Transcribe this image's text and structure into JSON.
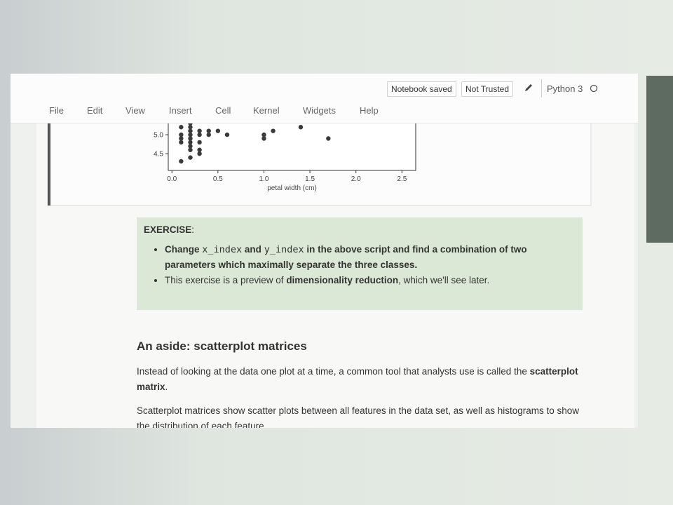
{
  "toolbar": {
    "status": "Notebook saved",
    "trust": "Not Trusted",
    "kernel": "Python 3"
  },
  "menu": [
    "File",
    "Edit",
    "View",
    "Insert",
    "Cell",
    "Kernel",
    "Widgets",
    "Help"
  ],
  "plot": {
    "type": "scatter",
    "xlabel": "petal width (cm)",
    "color": "#3a3a3a",
    "xlim": [
      -0.04,
      2.65
    ],
    "ylim": [
      4.06,
      5.5
    ],
    "xticks": [
      {
        "value": 0,
        "label": "0.0"
      },
      {
        "value": 0.5,
        "label": "0.5"
      },
      {
        "value": 1,
        "label": "1.0"
      },
      {
        "value": 1.5,
        "label": "1.5"
      },
      {
        "value": 2,
        "label": "2.0"
      },
      {
        "value": 2.5,
        "label": "2.5"
      }
    ],
    "yticks": [
      4.5,
      {
        "value": 5,
        "label": "5.0"
      }
    ],
    "x": [
      0.1,
      0.1,
      0.1,
      0.1,
      0.1,
      0.2,
      0.2,
      0.2,
      0.2,
      0.2,
      0.2,
      0.2,
      0.2,
      0.2,
      0.3,
      0.3,
      0.3,
      0.3,
      0.3,
      0.4,
      0.4,
      0.5,
      0.6,
      1.0,
      1.0,
      1.1,
      1.4,
      1.7
    ],
    "y": [
      4.3,
      4.8,
      4.9,
      5.0,
      5.2,
      4.4,
      4.6,
      4.7,
      4.8,
      4.9,
      5.0,
      5.1,
      5.2,
      5.3,
      4.5,
      4.6,
      4.8,
      5.0,
      5.1,
      5.0,
      5.1,
      5.1,
      5.0,
      4.9,
      5.0,
      5.1,
      5.2,
      4.9
    ]
  },
  "exercise": {
    "title": "EXERCISE",
    "colon": ":",
    "items": [
      [
        {
          "text": "Change ",
          "style": "bold"
        },
        {
          "text": "x_index",
          "style": "code"
        },
        {
          "text": " and ",
          "style": "bold"
        },
        {
          "text": "y_index",
          "style": "code"
        },
        {
          "text": " in the above script and find a combination of two parameters which maximally separate the three classes.",
          "style": "bold"
        }
      ],
      [
        {
          "text": "This exercise is a preview of ",
          "style": "normal"
        },
        {
          "text": "dimensionality reduction",
          "style": "bold"
        },
        {
          "text": ", which we'll see later.",
          "style": "normal"
        }
      ]
    ]
  },
  "aside": {
    "heading": "An aside: scatterplot matrices",
    "paragraphs": [
      [
        {
          "text": "Instead of looking at the data one plot at a time, a common tool that analysts use is called the ",
          "style": "normal"
        },
        {
          "text": "scatterplot matrix",
          "style": "bold"
        },
        {
          "text": ".",
          "style": "normal"
        }
      ],
      [
        {
          "text": "Scatterplot matrices show scatter plots between all features in the data set, as well as histograms to show the distribution of each feature.",
          "style": "normal"
        }
      ]
    ]
  }
}
